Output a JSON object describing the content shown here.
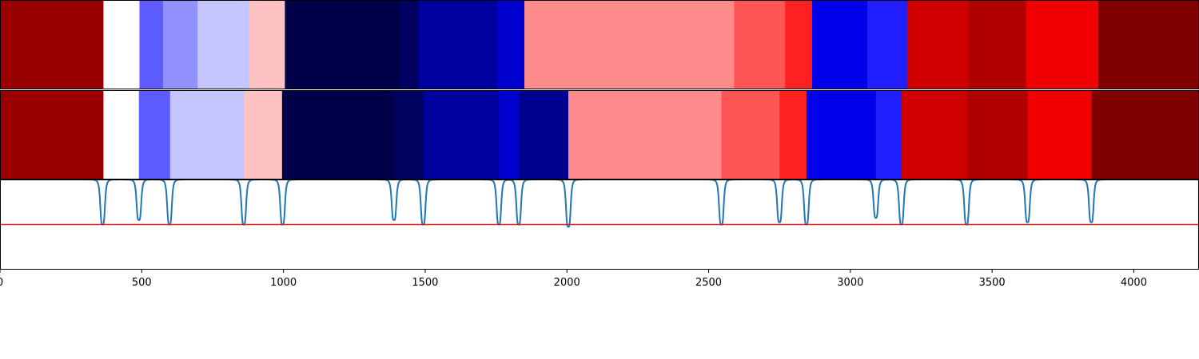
{
  "chart_data": {
    "type": "heatmap",
    "title": "",
    "xlabel": "",
    "ylabel": "",
    "xlim": [
      0,
      4230
    ],
    "xticks": [
      0,
      500,
      1000,
      1500,
      2000,
      2500,
      3000,
      3500,
      4000
    ],
    "xtick_labels": [
      "0",
      "500",
      "1000",
      "1500",
      "2000",
      "2500",
      "3000",
      "3500",
      "4000"
    ],
    "grid": false,
    "legend": "none",
    "rows": [
      {
        "segments": [
          {
            "start": 0,
            "end": 365,
            "color": "#9b0000"
          },
          {
            "start": 365,
            "end": 492,
            "color": "#ffffff"
          },
          {
            "start": 492,
            "end": 575,
            "color": "#5c5cff"
          },
          {
            "start": 575,
            "end": 697,
            "color": "#9090ff"
          },
          {
            "start": 697,
            "end": 878,
            "color": "#c4c4ff"
          },
          {
            "start": 878,
            "end": 1005,
            "color": "#ffc2c2"
          },
          {
            "start": 1005,
            "end": 1410,
            "color": "#000048"
          },
          {
            "start": 1410,
            "end": 1475,
            "color": "#00005e"
          },
          {
            "start": 1475,
            "end": 1755,
            "color": "#00009e"
          },
          {
            "start": 1755,
            "end": 1850,
            "color": "#0000cf"
          },
          {
            "start": 1850,
            "end": 2590,
            "color": "#ff8c8c"
          },
          {
            "start": 2590,
            "end": 2770,
            "color": "#ff5555"
          },
          {
            "start": 2770,
            "end": 2865,
            "color": "#ff2020"
          },
          {
            "start": 2865,
            "end": 3060,
            "color": "#0000ea"
          },
          {
            "start": 3060,
            "end": 3200,
            "color": "#1f1fff"
          },
          {
            "start": 3200,
            "end": 3415,
            "color": "#d10000"
          },
          {
            "start": 3415,
            "end": 3620,
            "color": "#b00000"
          },
          {
            "start": 3620,
            "end": 3875,
            "color": "#f00000"
          },
          {
            "start": 3875,
            "end": 4230,
            "color": "#800000"
          }
        ]
      },
      {
        "segments": [
          {
            "start": 0,
            "end": 365,
            "color": "#9b0000"
          },
          {
            "start": 365,
            "end": 490,
            "color": "#ffffff"
          },
          {
            "start": 490,
            "end": 600,
            "color": "#5c5cff"
          },
          {
            "start": 600,
            "end": 860,
            "color": "#c4c4ff"
          },
          {
            "start": 860,
            "end": 995,
            "color": "#ffc2c2"
          },
          {
            "start": 995,
            "end": 1390,
            "color": "#000048"
          },
          {
            "start": 1390,
            "end": 1495,
            "color": "#00005e"
          },
          {
            "start": 1495,
            "end": 1760,
            "color": "#00009e"
          },
          {
            "start": 1760,
            "end": 1830,
            "color": "#0000cf"
          },
          {
            "start": 1830,
            "end": 2005,
            "color": "#00008f"
          },
          {
            "start": 2005,
            "end": 2545,
            "color": "#ff8c8c"
          },
          {
            "start": 2545,
            "end": 2750,
            "color": "#ff5555"
          },
          {
            "start": 2750,
            "end": 2845,
            "color": "#ff2020"
          },
          {
            "start": 2845,
            "end": 3090,
            "color": "#0000ea"
          },
          {
            "start": 3090,
            "end": 3180,
            "color": "#1f1fff"
          },
          {
            "start": 3180,
            "end": 3410,
            "color": "#d10000"
          },
          {
            "start": 3410,
            "end": 3625,
            "color": "#b00000"
          },
          {
            "start": 3625,
            "end": 3850,
            "color": "#f00000"
          },
          {
            "start": 3850,
            "end": 4230,
            "color": "#800000"
          }
        ]
      }
    ],
    "signal": {
      "color": "#1f77b4",
      "baseline": 1.0,
      "ylim": [
        -1.0,
        1.0
      ],
      "dips": [
        {
          "x": 362,
          "value": -0.0
        },
        {
          "x": 490,
          "value": 0.1
        },
        {
          "x": 598,
          "value": -0.0
        },
        {
          "x": 860,
          "value": 0.0
        },
        {
          "x": 997,
          "value": -0.0
        },
        {
          "x": 1390,
          "value": 0.1
        },
        {
          "x": 1493,
          "value": -0.0
        },
        {
          "x": 1760,
          "value": -0.0
        },
        {
          "x": 1830,
          "value": -0.0
        },
        {
          "x": 2005,
          "value": -0.05
        },
        {
          "x": 2545,
          "value": -0.0
        },
        {
          "x": 2750,
          "value": 0.05
        },
        {
          "x": 2845,
          "value": -0.0
        },
        {
          "x": 3090,
          "value": 0.15
        },
        {
          "x": 3180,
          "value": -0.0
        },
        {
          "x": 3410,
          "value": -0.0
        },
        {
          "x": 3625,
          "value": 0.05
        },
        {
          "x": 3850,
          "value": 0.05
        }
      ],
      "threshold": 0.0,
      "threshold_color": "#e31a1c"
    },
    "colors": {
      "frame": "#000000",
      "separator": "#ffffff"
    }
  }
}
